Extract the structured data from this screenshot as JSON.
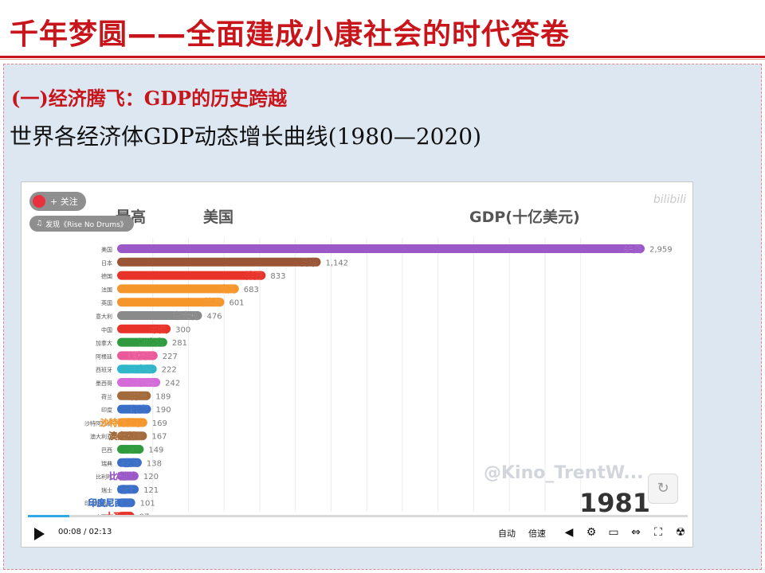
{
  "header": {
    "title": "千年梦圆——全面建成小康社会的时代答卷"
  },
  "section": {
    "subtitle": "(一)经济腾飞：GDP的历史跨越",
    "heading": "世界各经济体GDP动态增长曲线(1980—2020)"
  },
  "video": {
    "follow_label": "+ 关注",
    "music_label": "发现《Rise No Drums》",
    "brand": "bilibili",
    "watermark": "@Kino_TrentW...",
    "year": "1981",
    "header_left": "最高",
    "header_mid": "美国",
    "header_right": "GDP(十亿美元)",
    "time": "00:08 / 02:13",
    "progress": 0.063,
    "controls": {
      "auto": "自动",
      "speed": "倍速"
    },
    "icons": [
      "play-icon",
      "volume-icon",
      "settings-icon",
      "pip-icon",
      "widescreen-icon",
      "fullscreen-icon",
      "danmaku-icon",
      "replay-icon"
    ]
  },
  "chart_data": {
    "type": "bar",
    "orientation": "horizontal",
    "xlim": [
      0,
      3200
    ],
    "x_ticks": [
      "200",
      "400",
      "600",
      "800",
      "1,000",
      "1,200",
      "1,400",
      "1,600",
      "1,800",
      "2,000",
      "2,200",
      "2,400",
      "2,600"
    ],
    "categories": [
      "美国",
      "日本",
      "德国",
      "法国",
      "英国",
      "意大利",
      "中国",
      "加拿大",
      "阿根廷",
      "西班牙",
      "墨西哥",
      "荷兰",
      "印度",
      "沙特阿拉伯",
      "澳大利亚",
      "巴西",
      "瑞典",
      "比利时",
      "瑞士",
      "印度尼西亚",
      "土耳其"
    ],
    "values": [
      2959,
      1142,
      833,
      683,
      601,
      476,
      300,
      281,
      227,
      222,
      242,
      189,
      190,
      169,
      167,
      149,
      138,
      120,
      121,
      101,
      97
    ],
    "value_labels": [
      "2,959",
      "1,142",
      "833",
      "683",
      "601",
      "476",
      "300",
      "281",
      "227",
      "222",
      "242",
      "189",
      "190",
      "169",
      "167",
      "149",
      "138",
      "120",
      "121",
      "101",
      "97"
    ],
    "colors": [
      "#9b59c8",
      "#9a5436",
      "#e8332a",
      "#f5962a",
      "#f5962a",
      "#8a8a8a",
      "#e8332a",
      "#2f9a3e",
      "#ea5a9a",
      "#2fb6c8",
      "#d46bd8",
      "#a36b3c",
      "#3a6fc8",
      "#f5962a",
      "#a36b3c",
      "#2f9a3e",
      "#3a6fc8",
      "#9b59c8",
      "#3a6fc8",
      "#3a6fc8",
      "#e8332a"
    ]
  }
}
